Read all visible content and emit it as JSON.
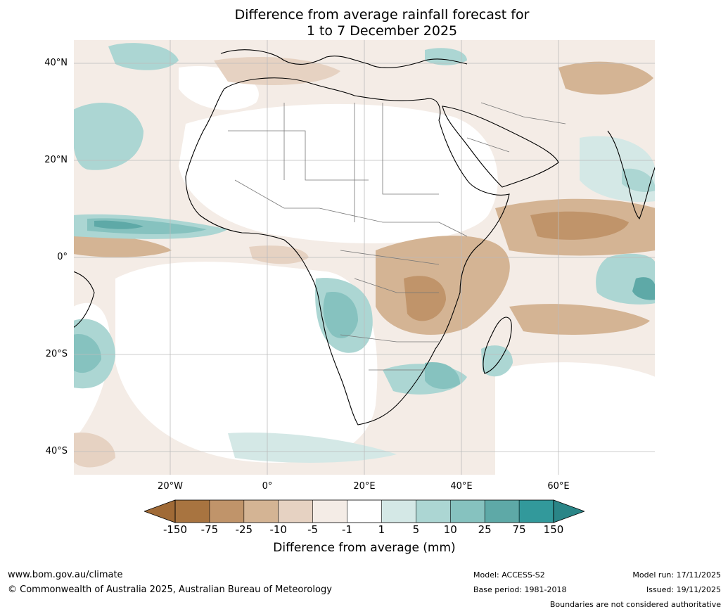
{
  "title_line1": "Difference from average rainfall forecast for",
  "title_line2": "1 to 7 December 2025",
  "lat_labels": [
    "40°N",
    "20°N",
    "0°",
    "20°S",
    "40°S"
  ],
  "lon_labels": [
    "20°W",
    "0°",
    "20°E",
    "40°E",
    "60°E"
  ],
  "colorbar": {
    "title": "Difference from average (mm)",
    "tick_labels": [
      "-150",
      "-75",
      "-25",
      "-10",
      "-5",
      "-1",
      "1",
      "5",
      "10",
      "25",
      "75",
      "150"
    ],
    "colors": [
      "#a87440",
      "#c0946a",
      "#d4b494",
      "#e6d2c2",
      "#f4ece6",
      "#ffffff",
      "#d4e8e6",
      "#acd6d3",
      "#86c2bf",
      "#5ea9a7",
      "#32999b"
    ],
    "min_extend_color": "#a06a36",
    "max_extend_color": "#2a8587"
  },
  "footer": {
    "url": "www.bom.gov.au/climate",
    "copyright": "© Commonwealth of Australia 2025, Australian Bureau of Meteorology",
    "model": "Model: ACCESS-S2",
    "base_period": "Base period: 1981-2018",
    "model_run": "Model run: 17/11/2025",
    "issued": "Issued: 19/11/2025",
    "disclaimer": "Boundaries are not considered authoritative"
  }
}
